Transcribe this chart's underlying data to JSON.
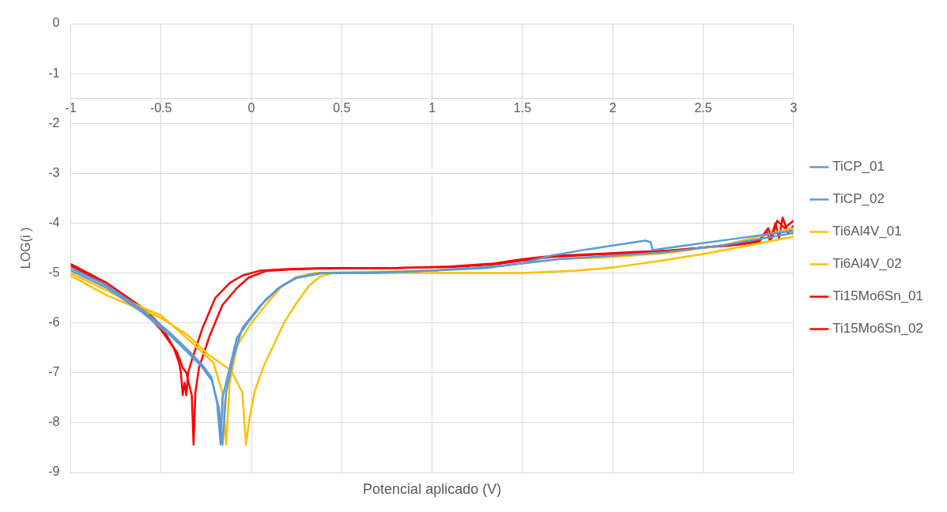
{
  "chart_data": {
    "type": "line",
    "xlabel": "Potencial aplicado (V)",
    "ylabel": "LOG(i )",
    "xlim": [
      -1,
      3
    ],
    "xticks": [
      -1,
      -0.5,
      0,
      0.5,
      1,
      1.5,
      2,
      2.5,
      3
    ],
    "ylim": [
      -9,
      0
    ],
    "yticks": [
      0,
      -1,
      -2,
      -3,
      -4,
      -5,
      -6,
      -7,
      -8,
      -9
    ],
    "grid": true,
    "legend": "right",
    "marker": "none",
    "line_style": "solid",
    "ref_lines": [
      {
        "axis": "y",
        "value": -1.5,
        "color": "#d9d9d9"
      }
    ],
    "series": [
      {
        "name": "TiCP_01",
        "color": "#5b9bd5",
        "x": [
          -1,
          -0.8,
          -0.6,
          -0.45,
          -0.35,
          -0.27,
          -0.22,
          -0.19,
          -0.17,
          -0.16,
          -0.12,
          -0.08,
          0,
          0.08,
          0.17,
          0.25,
          0.38,
          0.6,
          1,
          1.3,
          1.5,
          1.66,
          1.85,
          2.0,
          2.18,
          2.21,
          2.22,
          2.4,
          2.7,
          3
        ],
        "values": [
          -4.9,
          -5.25,
          -5.75,
          -6.2,
          -6.55,
          -6.85,
          -7.1,
          -7.6,
          -8.44,
          -7.5,
          -6.9,
          -6.3,
          -5.9,
          -5.53,
          -5.25,
          -5.09,
          -5.0,
          -5.0,
          -4.95,
          -4.9,
          -4.8,
          -4.65,
          -4.53,
          -4.45,
          -4.35,
          -4.38,
          -4.54,
          -4.45,
          -4.3,
          -4.15
        ]
      },
      {
        "name": "TiCP_02",
        "color": "#5b9bd5",
        "x": [
          -1,
          -0.8,
          -0.6,
          -0.45,
          -0.35,
          -0.27,
          -0.22,
          -0.18,
          -0.16,
          -0.14,
          -0.1,
          -0.05,
          0.05,
          0.15,
          0.25,
          0.4,
          0.7,
          1,
          1.4,
          1.7,
          2,
          2.3,
          2.6,
          3
        ],
        "values": [
          -4.95,
          -5.3,
          -5.8,
          -6.25,
          -6.6,
          -6.9,
          -7.15,
          -7.7,
          -8.44,
          -7.4,
          -6.7,
          -6.1,
          -5.65,
          -5.3,
          -5.1,
          -5.0,
          -5.0,
          -4.95,
          -4.85,
          -4.72,
          -4.65,
          -4.58,
          -4.45,
          -4.2
        ]
      },
      {
        "name": "Ti6Al4V_01",
        "color": "#ffc000",
        "x": [
          -1,
          -0.8,
          -0.6,
          -0.5,
          -0.34,
          -0.21,
          -0.16,
          -0.14,
          -0.12,
          -0.08,
          0,
          0.08,
          0.16,
          0.24,
          0.35,
          0.6,
          1,
          1.4,
          1.7,
          2,
          2.3,
          2.6,
          3
        ],
        "values": [
          -5.0,
          -5.35,
          -5.7,
          -5.85,
          -6.36,
          -6.8,
          -7.4,
          -8.44,
          -7.2,
          -6.47,
          -6.0,
          -5.64,
          -5.3,
          -5.09,
          -5.0,
          -4.98,
          -4.95,
          -4.85,
          -4.72,
          -4.68,
          -4.6,
          -4.45,
          -4.1
        ]
      },
      {
        "name": "Ti6Al4V_02",
        "color": "#ffc000",
        "x": [
          -1,
          -0.8,
          -0.6,
          -0.5,
          -0.35,
          -0.24,
          -0.11,
          -0.05,
          -0.03,
          -0.01,
          0.02,
          0.07,
          0.12,
          0.18,
          0.25,
          0.32,
          0.38,
          0.45,
          0.7,
          1,
          1.5,
          1.8,
          2,
          2.25,
          2.5,
          2.75,
          3
        ],
        "values": [
          -5.05,
          -5.45,
          -5.75,
          -5.9,
          -6.25,
          -6.63,
          -6.96,
          -7.4,
          -8.44,
          -7.9,
          -7.35,
          -6.85,
          -6.47,
          -6.0,
          -5.6,
          -5.25,
          -5.07,
          -5.0,
          -5.0,
          -5.0,
          -5.0,
          -4.95,
          -4.89,
          -4.76,
          -4.62,
          -4.45,
          -4.27
        ]
      },
      {
        "name": "Ti15Mo6Sn_01",
        "color": "#ff0000",
        "x": [
          -1,
          -0.8,
          -0.6,
          -0.5,
          -0.41,
          -0.38,
          -0.36,
          -0.34,
          -0.33,
          -0.32,
          -0.31,
          -0.29,
          -0.23,
          -0.16,
          -0.08,
          -0.015,
          0.08,
          0.2,
          0.36,
          0.8,
          1.1,
          1.34,
          1.5,
          1.66,
          1.9,
          2.11,
          2.3,
          2.47,
          2.65,
          2.81,
          2.85,
          2.87,
          2.9,
          2.92,
          2.94,
          2.97,
          3
        ],
        "values": [
          -4.85,
          -5.25,
          -5.75,
          -6.14,
          -6.6,
          -6.9,
          -7.0,
          -7.3,
          -7.45,
          -8.44,
          -7.4,
          -6.9,
          -6.25,
          -5.64,
          -5.3,
          -5.09,
          -4.96,
          -4.93,
          -4.91,
          -4.9,
          -4.88,
          -4.83,
          -4.75,
          -4.68,
          -4.63,
          -4.6,
          -4.56,
          -4.5,
          -4.45,
          -4.38,
          -4.15,
          -4.35,
          -4.0,
          -4.3,
          -3.89,
          -4.2,
          -4.05
        ]
      },
      {
        "name": "Ti15Mo6Sn_02",
        "color": "#ff0000",
        "x": [
          -1,
          -0.8,
          -0.6,
          -0.5,
          -0.43,
          -0.4,
          -0.39,
          -0.38,
          -0.37,
          -0.36,
          -0.35,
          -0.33,
          -0.27,
          -0.2,
          -0.12,
          -0.05,
          0.05,
          0.2,
          0.4,
          0.8,
          1.1,
          1.34,
          1.5,
          1.66,
          1.9,
          2.11,
          2.3,
          2.47,
          2.65,
          2.81,
          2.86,
          2.88,
          2.91,
          2.95,
          3
        ],
        "values": [
          -4.82,
          -5.2,
          -5.7,
          -6.05,
          -6.5,
          -6.8,
          -7.0,
          -7.45,
          -7.2,
          -7.45,
          -7.0,
          -6.75,
          -6.1,
          -5.5,
          -5.2,
          -5.05,
          -4.95,
          -4.92,
          -4.9,
          -4.9,
          -4.87,
          -4.81,
          -4.72,
          -4.66,
          -4.62,
          -4.58,
          -4.55,
          -4.5,
          -4.43,
          -4.35,
          -4.1,
          -4.3,
          -3.95,
          -4.1,
          -3.95
        ]
      }
    ]
  }
}
